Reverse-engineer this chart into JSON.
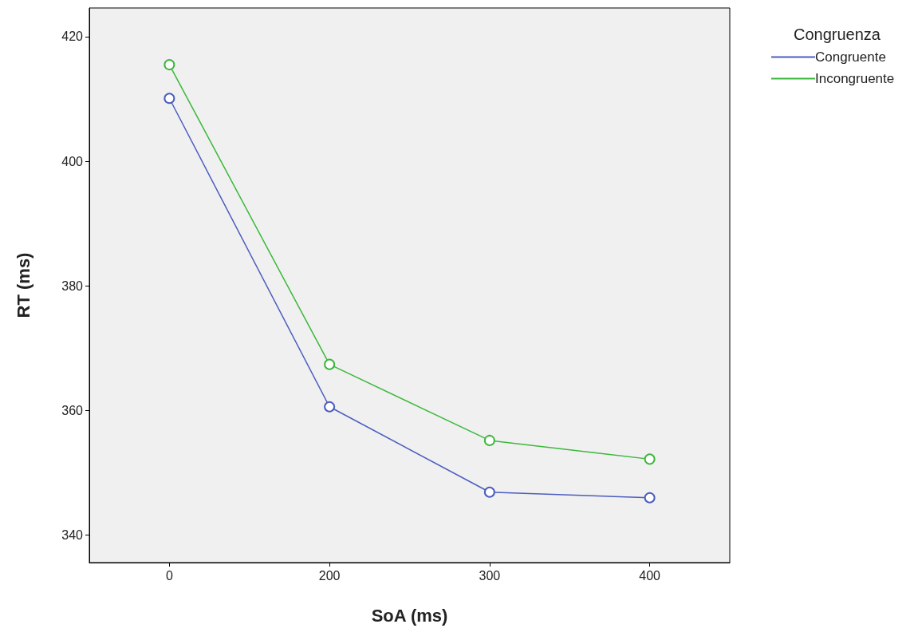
{
  "chart_data": {
    "type": "line",
    "xlabel": "SoA (ms)",
    "ylabel": "RT (ms)",
    "legend_title": "Congruenza",
    "categories": [
      "0",
      "200",
      "300",
      "400"
    ],
    "series": [
      {
        "name": "Congruente",
        "color": "#4c5dbf",
        "values": [
          410.1,
          360.6,
          346.9,
          346.0
        ]
      },
      {
        "name": "Incongruente",
        "color": "#3cb83c",
        "values": [
          415.5,
          367.4,
          355.2,
          352.2
        ]
      }
    ],
    "ylim": [
      335.6,
      424.6
    ],
    "yticks": [
      340,
      360,
      380,
      400,
      420
    ],
    "grid": false,
    "legend": "top right",
    "marker": "circle",
    "line_style": "solid"
  }
}
